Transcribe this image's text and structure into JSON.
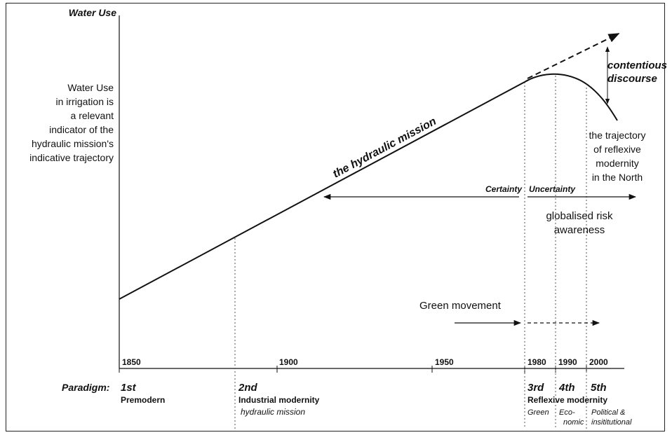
{
  "y_axis_label": "Water Use",
  "y_note": [
    "Water Use",
    "in irrigation is",
    "a relevant",
    "indicator of the",
    "hydraulic mission's",
    "indicative trajectory"
  ],
  "mission_label": "the hydraulic mission",
  "contentious": [
    "contentious",
    "discourse"
  ],
  "reflexive_note": [
    "the trajectory",
    "of reflexive",
    "modernity",
    "in the North"
  ],
  "certainty_label": "Certainty",
  "uncertainty_label": "Uncertainty",
  "risk_note": [
    "globalised risk",
    "awareness"
  ],
  "green_label": "Green movement",
  "years": [
    "1850",
    "1900",
    "1950",
    "1980",
    "1990",
    "2000"
  ],
  "paradigm_label": "Paradigm:",
  "paradigms": {
    "p1": {
      "ordinal": "1st",
      "name": "Premodern"
    },
    "p2": {
      "ordinal": "2nd",
      "name": "Industrial modernity",
      "sub": "hydraulic mission"
    },
    "p3": {
      "ordinal": "3rd"
    },
    "p4": {
      "ordinal": "4th"
    },
    "p5": {
      "ordinal": "5th"
    },
    "reflexive": "Reflexive modernity",
    "green": "Green",
    "economic": [
      "Eco-",
      "nomic"
    ],
    "political": [
      "Political &",
      "insititutional"
    ]
  }
}
